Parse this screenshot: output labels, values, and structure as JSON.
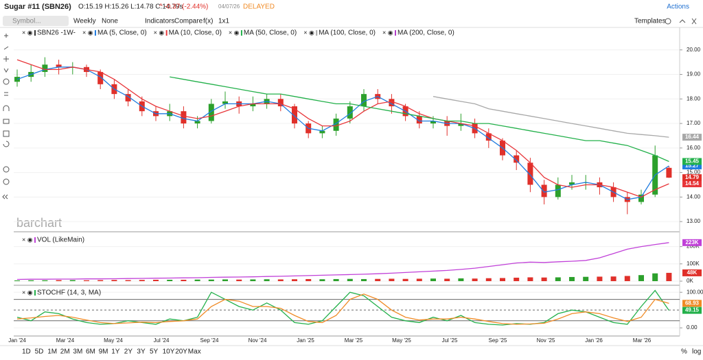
{
  "header": {
    "title": "Sugar #11 (SBN26)",
    "quote": "O:15.19 H:15.26 L:14.78 C:14.79s",
    "change": "^ -0.37 (-2.44%)",
    "date": "04/07/26",
    "status": "DELAYED",
    "actions": "Actions"
  },
  "toolbar": {
    "search": "Symbol...",
    "items": [
      "Weekly",
      "None",
      "Indicators",
      "Compare",
      "f(x)",
      "1x1"
    ],
    "templates": "Templates"
  },
  "watermark": "barchart",
  "ranges": [
    "1D",
    "5D",
    "1M",
    "2M",
    "3M",
    "6M",
    "9M",
    "1Y",
    "2Y",
    "3Y",
    "5Y",
    "10Y",
    "20Y",
    "Max"
  ],
  "scale_options": [
    "%",
    "log"
  ],
  "chart_data": [
    {
      "type": "candlestick",
      "name": "SBN26 -1W-",
      "up_color": "#2ca02c",
      "down_color": "#e0302a",
      "x_labels": [
        "Jan '24",
        "Mar '24",
        "May '24",
        "Jul '24",
        "Sep '24",
        "Nov '24",
        "Jan '25",
        "Mar '25",
        "May '25",
        "Jul '25",
        "Sep '25",
        "Nov '25",
        "Jan '26",
        "Mar '26"
      ],
      "open": [
        18.7,
        18.9,
        19.1,
        19.4,
        19.3,
        19.3,
        19.1,
        18.6,
        18.2,
        17.9,
        17.5,
        17.3,
        17.5,
        17.0,
        17.1,
        17.8,
        17.9,
        17.7,
        17.8,
        18.0,
        17.7,
        17.0,
        16.6,
        16.7,
        17.2,
        17.7,
        18.2,
        18.0,
        17.7,
        17.3,
        17.0,
        17.1,
        16.9,
        17.0,
        16.6,
        16.3,
        15.7,
        15.4,
        14.5,
        14.0,
        14.5,
        14.6,
        14.6,
        14.4,
        14.0,
        13.8,
        14.1,
        15.19
      ],
      "high": [
        19.2,
        19.4,
        19.7,
        19.6,
        19.5,
        19.4,
        19.2,
        18.8,
        18.4,
        18.1,
        17.7,
        17.8,
        17.7,
        17.3,
        18.0,
        18.3,
        18.1,
        18.1,
        18.2,
        18.2,
        17.8,
        17.1,
        16.9,
        17.4,
        17.9,
        18.4,
        18.4,
        18.2,
        17.8,
        17.5,
        17.3,
        17.3,
        17.4,
        17.2,
        16.8,
        16.4,
        15.9,
        15.6,
        14.7,
        14.8,
        14.9,
        14.9,
        14.8,
        14.6,
        14.2,
        14.3,
        16.1,
        15.26
      ],
      "low": [
        18.5,
        18.7,
        18.9,
        19.0,
        19.0,
        18.9,
        18.4,
        18.0,
        17.7,
        17.3,
        17.1,
        17.1,
        16.8,
        16.8,
        17.0,
        17.6,
        17.4,
        17.5,
        17.6,
        17.5,
        16.8,
        16.4,
        16.4,
        16.5,
        17.0,
        17.5,
        17.8,
        17.4,
        17.1,
        16.8,
        16.8,
        16.5,
        16.7,
        16.4,
        16.0,
        15.5,
        15.1,
        14.2,
        13.7,
        13.9,
        14.3,
        14.3,
        14.1,
        13.8,
        13.3,
        13.7,
        14.0,
        14.78
      ],
      "close": [
        18.9,
        19.1,
        19.4,
        19.3,
        19.3,
        19.1,
        18.6,
        18.2,
        17.9,
        17.5,
        17.3,
        17.5,
        17.0,
        17.1,
        17.8,
        17.9,
        17.7,
        17.8,
        18.0,
        17.7,
        17.0,
        16.6,
        16.7,
        17.2,
        17.7,
        18.2,
        18.0,
        17.7,
        17.3,
        17.0,
        17.1,
        16.9,
        17.0,
        16.6,
        16.3,
        15.7,
        15.4,
        14.5,
        14.0,
        14.5,
        14.6,
        14.6,
        14.4,
        14.0,
        13.8,
        14.1,
        15.7,
        14.79
      ],
      "series": [
        {
          "name": "MA (5, Close, 0)",
          "color": "#1e7be0",
          "values": [
            18.8,
            19.0,
            19.2,
            19.3,
            19.3,
            19.2,
            18.9,
            18.4,
            18.1,
            17.7,
            17.4,
            17.4,
            17.2,
            17.1,
            17.5,
            17.8,
            17.8,
            17.8,
            17.9,
            17.8,
            17.3,
            16.8,
            16.7,
            17.0,
            17.4,
            17.9,
            18.1,
            17.8,
            17.5,
            17.1,
            17.1,
            17.0,
            17.0,
            16.8,
            16.4,
            16.0,
            15.5,
            14.9,
            14.2,
            14.3,
            14.5,
            14.6,
            14.5,
            14.2,
            13.9,
            14.0,
            14.9,
            15.27
          ]
        },
        {
          "name": "MA (10, Close, 0)",
          "color": "#e8363a",
          "values": [
            19.6,
            19.4,
            19.2,
            19.2,
            19.3,
            19.2,
            19.1,
            18.8,
            18.4,
            18.0,
            17.7,
            17.5,
            17.3,
            17.2,
            17.3,
            17.5,
            17.7,
            17.8,
            17.8,
            17.8,
            17.6,
            17.2,
            16.9,
            16.9,
            17.1,
            17.5,
            17.8,
            17.9,
            17.7,
            17.4,
            17.2,
            17.1,
            17.0,
            16.9,
            16.6,
            16.3,
            15.9,
            15.4,
            14.8,
            14.5,
            14.4,
            14.5,
            14.5,
            14.4,
            14.2,
            14.0,
            14.3,
            14.54
          ]
        },
        {
          "name": "MA (50, Close, 0)",
          "color": "#22b04a",
          "values": [
            null,
            null,
            null,
            null,
            null,
            null,
            null,
            null,
            null,
            null,
            null,
            18.9,
            18.8,
            18.7,
            18.6,
            18.5,
            18.4,
            18.3,
            18.2,
            18.2,
            18.1,
            18.0,
            17.9,
            17.8,
            17.8,
            17.7,
            17.6,
            17.5,
            17.4,
            17.3,
            17.2,
            17.1,
            17.1,
            17.0,
            17.0,
            16.9,
            16.8,
            16.7,
            16.6,
            16.5,
            16.4,
            16.3,
            16.3,
            16.2,
            16.1,
            15.9,
            15.7,
            15.45
          ]
        },
        {
          "name": "MA (100, Close, 0)",
          "color": "#a8a8a8",
          "values": [
            null,
            null,
            null,
            null,
            null,
            null,
            null,
            null,
            null,
            null,
            null,
            null,
            null,
            null,
            null,
            null,
            null,
            null,
            null,
            null,
            null,
            null,
            null,
            null,
            null,
            null,
            null,
            null,
            null,
            null,
            18.1,
            18.0,
            17.9,
            17.8,
            17.6,
            17.5,
            17.4,
            17.3,
            17.2,
            17.1,
            17.0,
            16.9,
            16.8,
            16.7,
            16.6,
            16.55,
            16.5,
            16.44
          ]
        }
      ],
      "extra_legend": [
        {
          "name": "MA (200, Close, 0)",
          "color": "#b03cc8"
        }
      ],
      "ylim": [
        12.64,
        20.86
      ],
      "yticks": [
        {
          "value": 13,
          "label": "13.00"
        },
        {
          "value": 14,
          "label": "14.00"
        },
        {
          "value": 15,
          "label": "15.00"
        },
        {
          "value": 16,
          "label": "16.00"
        },
        {
          "value": 17,
          "label": "17.00"
        },
        {
          "value": 18,
          "label": "18.00"
        },
        {
          "value": 19,
          "label": "19.00"
        },
        {
          "value": 20,
          "label": "20.00"
        }
      ]
    },
    {
      "type": "volume",
      "name": "VOL (LikeMain)",
      "bar_up_color": "#2ca02c",
      "bar_down_color": "#e0302a",
      "line_color": "#c040d8",
      "bars": [
        4,
        5,
        5,
        6,
        6,
        5,
        6,
        7,
        6,
        7,
        8,
        8,
        8,
        9,
        9,
        10,
        9,
        10,
        11,
        10,
        11,
        12,
        11,
        12,
        13,
        12,
        13,
        14,
        13,
        14,
        15,
        14,
        16,
        15,
        17,
        18,
        20,
        22,
        21,
        22,
        24,
        25,
        26,
        27,
        30,
        35,
        45,
        48
      ],
      "bars_last_label": "48K",
      "line": [
        10,
        11,
        11,
        12,
        12,
        13,
        13,
        14,
        15,
        16,
        17,
        18,
        19,
        20,
        22,
        23,
        24,
        25,
        27,
        28,
        30,
        32,
        34,
        36,
        38,
        40,
        43,
        46,
        50,
        54,
        58,
        62,
        68,
        75,
        85,
        95,
        105,
        110,
        108,
        112,
        115,
        120,
        135,
        160,
        185,
        200,
        212,
        223
      ],
      "line_last_label": "223K",
      "ylim": [
        0,
        262
      ],
      "yticks": [
        {
          "value": 0,
          "label": "0K"
        },
        {
          "value": 100,
          "label": "100K"
        },
        {
          "value": 200,
          "label": "200K"
        }
      ]
    },
    {
      "type": "stochastic",
      "name": "STOCHF (14, 3, MA)",
      "series": [
        {
          "name": "%K",
          "color": "#22b04a",
          "values": [
            30,
            20,
            45,
            40,
            25,
            15,
            10,
            12,
            20,
            15,
            10,
            25,
            20,
            30,
            100,
            80,
            60,
            50,
            70,
            50,
            15,
            10,
            20,
            60,
            100,
            90,
            60,
            30,
            20,
            15,
            30,
            20,
            35,
            15,
            10,
            8,
            12,
            10,
            15,
            40,
            50,
            45,
            30,
            15,
            10,
            60,
            105,
            49.15
          ]
        },
        {
          "name": "%D",
          "color": "#f08a24",
          "values": [
            25,
            28,
            32,
            35,
            30,
            22,
            15,
            12,
            14,
            16,
            15,
            18,
            20,
            25,
            60,
            80,
            75,
            60,
            60,
            55,
            35,
            18,
            15,
            35,
            80,
            95,
            80,
            50,
            30,
            22,
            25,
            25,
            30,
            25,
            18,
            12,
            10,
            11,
            13,
            25,
            40,
            45,
            40,
            28,
            18,
            30,
            80,
            68.93
          ]
        }
      ],
      "levels": [
        20,
        50,
        80
      ],
      "ylim": [
        -19,
        112
      ],
      "yticks": [
        {
          "value": 0,
          "label": "0.00"
        },
        {
          "value": 100,
          "label": "100.00"
        }
      ]
    }
  ]
}
